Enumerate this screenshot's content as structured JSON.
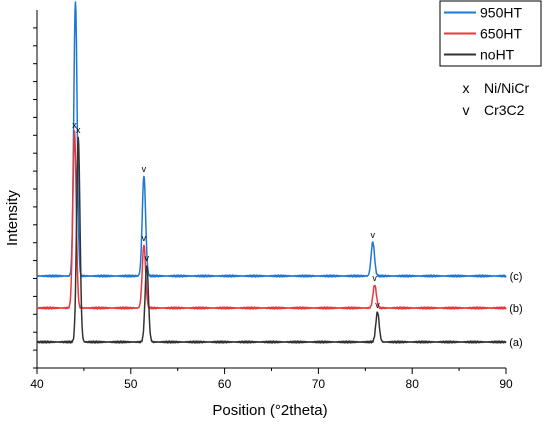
{
  "chart_data": {
    "type": "line",
    "xlabel": "Position (°2theta)",
    "ylabel": "Intensity",
    "xlim": [
      40,
      90
    ],
    "x_ticks": [
      40,
      50,
      60,
      70,
      80,
      90
    ],
    "y_tick_labels_shown": false,
    "legend": {
      "placement": "top-right",
      "entries": [
        {
          "name": "950HT",
          "color": "#1f77d4"
        },
        {
          "name": "650HT",
          "color": "#e8383b"
        },
        {
          "name": "noHT",
          "color": "#333333"
        }
      ]
    },
    "annotations": [
      {
        "symbol": "x",
        "label": "Ni/NiCr"
      },
      {
        "symbol": "v",
        "label": "Cr3C2"
      }
    ],
    "series": [
      {
        "name": "950HT",
        "trace_label": "(c)",
        "color": "#1f77d4",
        "baseline": 0.66,
        "peaks": [
          {
            "x": 44.1,
            "height": 2.75,
            "marker": "x"
          },
          {
            "x": 51.4,
            "height": 1.0,
            "marker": "v"
          },
          {
            "x": 75.8,
            "height": 0.34,
            "marker": "v"
          }
        ]
      },
      {
        "name": "650HT",
        "trace_label": "(b)",
        "color": "#e8383b",
        "baseline": 0.34,
        "peaks": [
          {
            "x": 44.0,
            "height": 1.76,
            "marker": "x"
          },
          {
            "x": 51.4,
            "height": 0.63,
            "marker": "v"
          },
          {
            "x": 76.0,
            "height": 0.23,
            "marker": "v"
          }
        ]
      },
      {
        "name": "noHT",
        "trace_label": "(a)",
        "color": "#333333",
        "baseline": 0.0,
        "peaks": [
          {
            "x": 44.4,
            "height": 2.05,
            "marker": "x"
          },
          {
            "x": 51.7,
            "height": 0.77,
            "marker": "v"
          },
          {
            "x": 76.3,
            "height": 0.3,
            "marker": "v"
          }
        ]
      }
    ]
  }
}
